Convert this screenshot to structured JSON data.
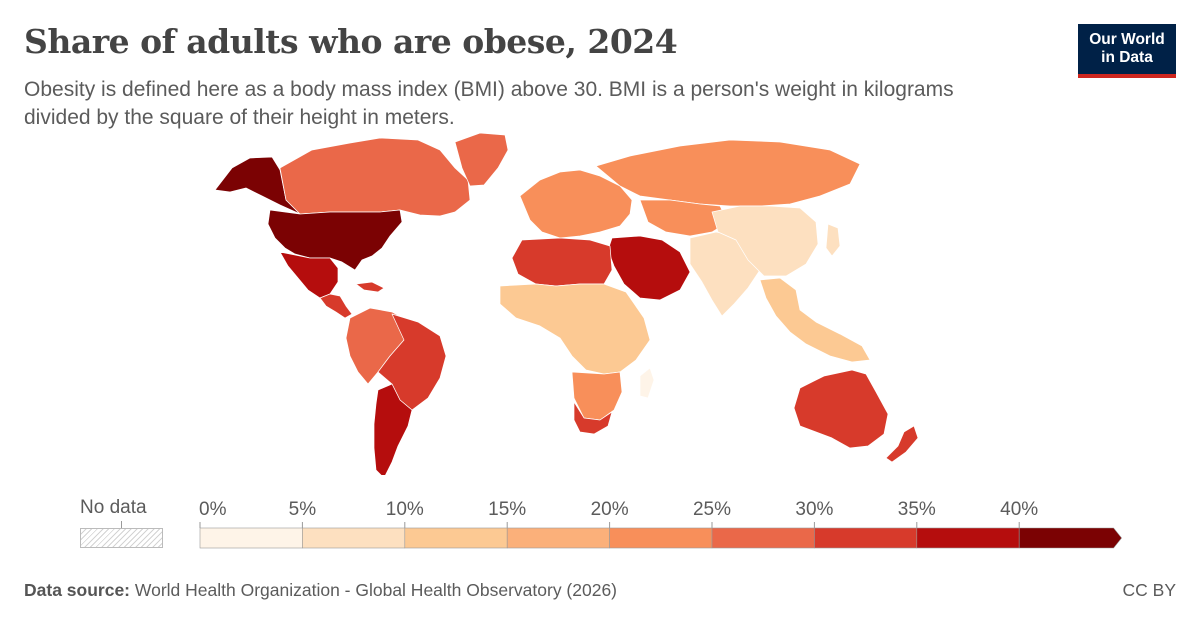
{
  "header": {
    "title": "Share of adults who are obese, 2024",
    "subtitle": "Obesity is defined here as a body mass index (BMI) above 30. BMI is a person's weight in kilograms divided by the square of their height in meters."
  },
  "logo": {
    "line1": "Our World",
    "line2": "in Data"
  },
  "legend": {
    "no_data_label": "No data",
    "ticks": [
      "0%",
      "5%",
      "10%",
      "15%",
      "20%",
      "25%",
      "30%",
      "35%",
      "40%"
    ],
    "colors": [
      "#fef4e8",
      "#fde0c0",
      "#fcc993",
      "#fbb07a",
      "#f88f5a",
      "#ea6849",
      "#d73a2b",
      "#b50d0d",
      "#7b0203"
    ]
  },
  "map_fills": {
    "north_america_south": "#7b0203",
    "canada": "#ea6849",
    "alaska": "#7b0203",
    "greenland": "#ea6849",
    "mexico": "#b50d0d",
    "central_america": "#d73a2b",
    "caribbean": "#d73a2b",
    "south_america_north": "#ea6849",
    "brazil": "#d73a2b",
    "southern_cone": "#b50d0d",
    "europe": "#f88f5a",
    "russia": "#f88f5a",
    "middle_east": "#b50d0d",
    "north_africa": "#d73a2b",
    "africa_central": "#fcc993",
    "africa_south": "#f88f5a",
    "south_africa": "#d73a2b",
    "china": "#fde0c0",
    "south_asia": "#fde0c0",
    "central_asia": "#f88f5a",
    "southeast_asia": "#fcc993",
    "australia": "#d73a2b",
    "new_zealand": "#d73a2b",
    "japan": "#fde0c0",
    "madagascar": "#fef4e8"
  },
  "footer": {
    "source_label": "Data source:",
    "source_text": "World Health Organization - Global Health Observatory (2026)",
    "license": "CC BY"
  }
}
